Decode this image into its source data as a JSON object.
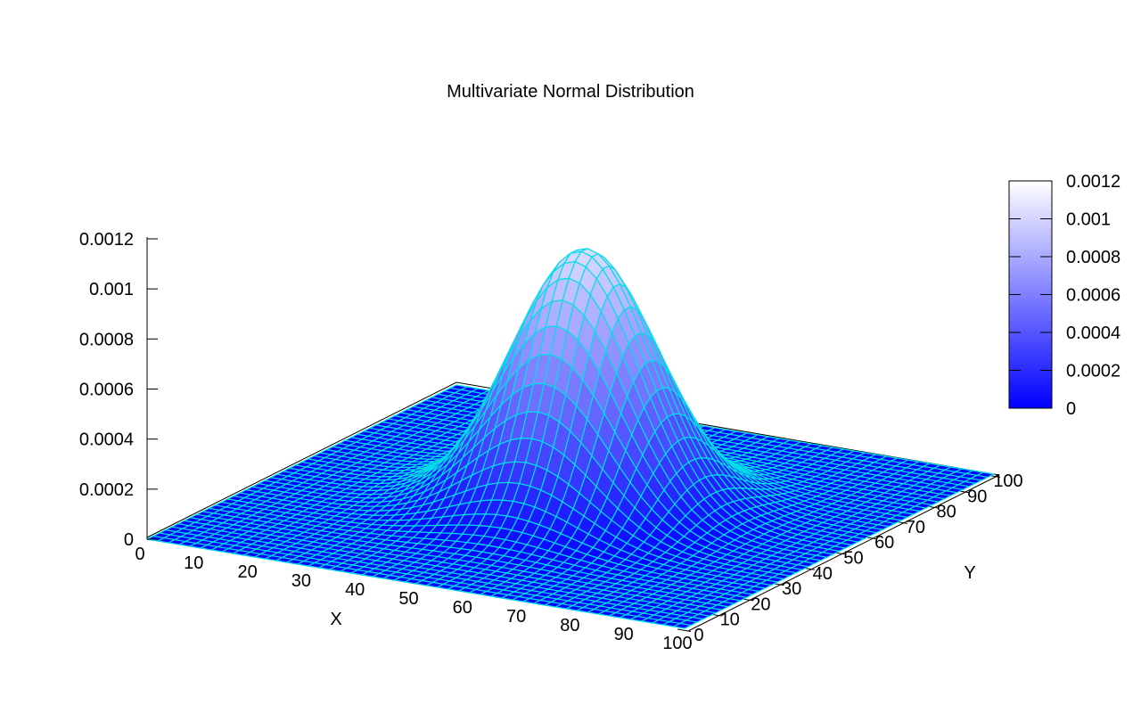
{
  "title": "Multivariate Normal Distribution",
  "chart_data": {
    "type": "surface_3d",
    "title": "Multivariate Normal Distribution",
    "xlabel": "X",
    "ylabel": "Y",
    "xlim": [
      0,
      100
    ],
    "ylim": [
      0,
      100
    ],
    "zlim": [
      0,
      0.0012
    ],
    "x_ticks": [
      0,
      10,
      20,
      30,
      40,
      50,
      60,
      70,
      80,
      90,
      100
    ],
    "y_ticks": [
      0,
      10,
      20,
      30,
      40,
      50,
      60,
      70,
      80,
      90,
      100
    ],
    "z_ticks": {
      "values": [
        0,
        0.0002,
        0.0004,
        0.0006,
        0.0008,
        0.001,
        0.0012
      ],
      "labels": [
        "0",
        "0.0002",
        "0.0004",
        "0.0006",
        "0.0008",
        "0.001",
        "0.0012"
      ]
    },
    "colorbar": {
      "tick_values": [
        0,
        0.0002,
        0.0004,
        0.0006,
        0.0008,
        0.001,
        0.0012
      ],
      "tick_labels": [
        "0",
        "0.0002",
        "0.0004",
        "0.0006",
        "0.0008",
        "0.001",
        "0.0012"
      ],
      "low_color": "#0000ff",
      "high_color": "#ffffff"
    },
    "surface": {
      "model": "bivariate_gaussian",
      "center_x": 52,
      "center_y": 51,
      "sigma_x": 12,
      "sigma_y": 12,
      "peak": 0.00103,
      "grid_step": 2
    },
    "colors": {
      "mesh_line": "#00dfe8",
      "fill_low": "#0000ff",
      "fill_high": "#ffffff",
      "axis": "#000000",
      "background": "#ffffff"
    },
    "grid": false,
    "legend": null
  }
}
